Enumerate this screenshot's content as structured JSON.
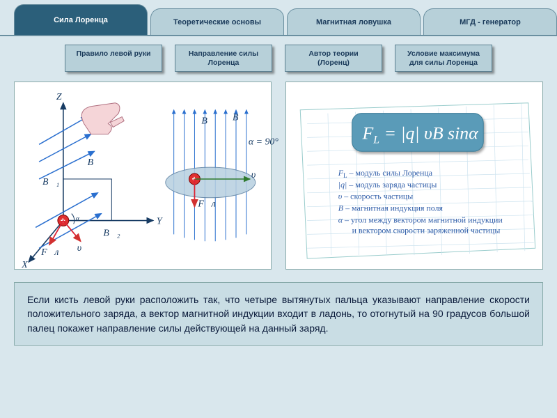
{
  "tabs": [
    {
      "label": "Сила  Лоренца",
      "active": true
    },
    {
      "label": "Теоретические основы",
      "active": false
    },
    {
      "label": "Магнитная ловушка",
      "active": false
    },
    {
      "label": "МГД - генератор",
      "active": false
    }
  ],
  "subbuttons": [
    "Правило левой руки",
    "Направление силы\nЛоренца",
    "Автор теории\n(Лоренц)",
    "Условие максимума\nдля силы Лоренца"
  ],
  "diagram_left": {
    "axes": [
      "X",
      "Y",
      "Z"
    ],
    "vectors": [
      "B",
      "B₁",
      "B₂",
      "υ",
      "Fл"
    ],
    "angle": "α",
    "alpha_label": "α = 90°",
    "colors": {
      "field": "#2a6fcf",
      "velocity": "#d23030",
      "force": "#d23030",
      "axis": "#173b63",
      "charge": "#e03030"
    }
  },
  "formula_panel": {
    "formula": "F_L = |q| υ B sinα",
    "legend": [
      {
        "sym": "F_L",
        "txt": "– модуль силы Лоренца"
      },
      {
        "sym": "|q|",
        "txt": "– модуль заряда частицы"
      },
      {
        "sym": "υ",
        "txt": "– скорость частицы"
      },
      {
        "sym": "B",
        "txt": "– магнитная индукция поля"
      },
      {
        "sym": "α",
        "txt": "– угол между вектором магнитной индукции и вектором скорости заряженной частицы"
      }
    ],
    "box_color": "#4a8fb0",
    "text_color": "#2e5ca8",
    "grid_color": "#b8d4e6"
  },
  "bottom_text": "Если кисть левой руки расположить так, что четыре вытянутых пальца указывают направление скорости положительного заряда, а вектор магнитной индукции входит в ладонь, то отогнутый на  90 градусов большой палец покажет направление силы действующей на данный заряд."
}
